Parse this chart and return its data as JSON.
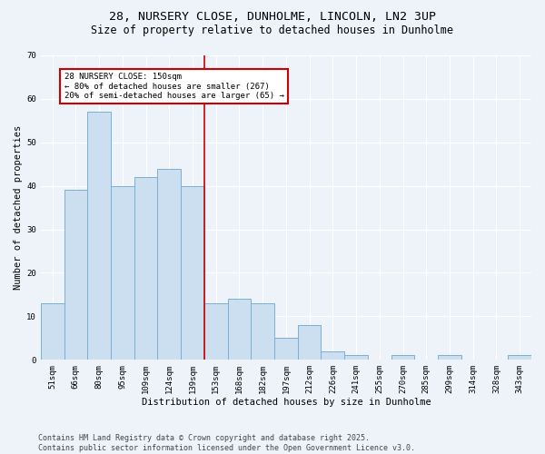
{
  "title_line1": "28, NURSERY CLOSE, DUNHOLME, LINCOLN, LN2 3UP",
  "title_line2": "Size of property relative to detached houses in Dunholme",
  "xlabel": "Distribution of detached houses by size in Dunholme",
  "ylabel": "Number of detached properties",
  "categories": [
    "51sqm",
    "66sqm",
    "80sqm",
    "95sqm",
    "109sqm",
    "124sqm",
    "139sqm",
    "153sqm",
    "168sqm",
    "182sqm",
    "197sqm",
    "212sqm",
    "226sqm",
    "241sqm",
    "255sqm",
    "270sqm",
    "285sqm",
    "299sqm",
    "314sqm",
    "328sqm",
    "343sqm"
  ],
  "values": [
    13,
    39,
    57,
    40,
    42,
    44,
    40,
    13,
    14,
    13,
    5,
    8,
    2,
    1,
    0,
    1,
    0,
    1,
    0,
    0,
    1
  ],
  "bar_color": "#ccdff0",
  "bar_edge_color": "#7bafd4",
  "bg_color": "#eef3fa",
  "grid_color": "#ffffff",
  "vline_color": "#cc0000",
  "vline_x": 6.5,
  "annotation_text": "28 NURSERY CLOSE: 150sqm\n← 80% of detached houses are smaller (267)\n20% of semi-detached houses are larger (65) →",
  "annotation_box_color": "#ffffff",
  "annotation_box_edge": "#cc0000",
  "ylim": [
    0,
    70
  ],
  "yticks": [
    0,
    10,
    20,
    30,
    40,
    50,
    60,
    70
  ],
  "footer": "Contains HM Land Registry data © Crown copyright and database right 2025.\nContains public sector information licensed under the Open Government Licence v3.0.",
  "title_fontsize": 9.5,
  "subtitle_fontsize": 8.5,
  "axis_label_fontsize": 7.5,
  "tick_fontsize": 6.5,
  "annotation_fontsize": 6.5,
  "footer_fontsize": 6.0
}
